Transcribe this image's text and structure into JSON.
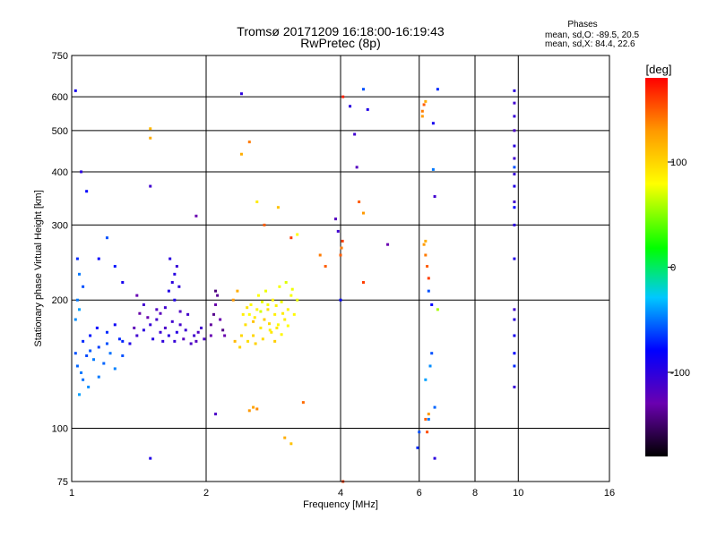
{
  "header": {
    "title": "Tromsø 20171209 16:18:00-16:19:43",
    "subtitle": "RwPretec (8p)"
  },
  "phase_box": {
    "title": "Phases",
    "line1": "mean, sd,O: -89.5, 20.5",
    "line2": "mean, sd,X:  84.4, 22.6"
  },
  "colorbar": {
    "label": "[deg]",
    "ticks": [
      "100",
      "0",
      "-100"
    ],
    "tick_values": [
      100,
      0,
      -100
    ],
    "range": [
      -180,
      180
    ]
  },
  "chart_data": {
    "type": "scatter",
    "title": "Tromsø 20171209 16:18:00-16:19:43",
    "subtitle": "RwPretec (8p)",
    "xlabel": "Frequency [MHz]",
    "ylabel": "Stationary phase Virtual Height [km]",
    "x_scale": "log",
    "y_scale": "log",
    "xlim": [
      1,
      16
    ],
    "ylim": [
      75,
      750
    ],
    "x_ticks": [
      1,
      2,
      4,
      6,
      8,
      10,
      16
    ],
    "x_tick_labels": [
      "1",
      "2",
      "4",
      "6",
      "8",
      "10",
      "16"
    ],
    "y_ticks": [
      75,
      100,
      200,
      300,
      400,
      500,
      600,
      750
    ],
    "y_tick_labels": [
      "75",
      "100",
      "200",
      "300",
      "400",
      "500",
      "600",
      "750"
    ],
    "grid": true,
    "color_by": "phase",
    "series": [
      {
        "values": [
          [
            1.02,
            150,
            -60
          ],
          [
            1.03,
            140,
            -55
          ],
          [
            1.05,
            135,
            -50
          ],
          [
            1.06,
            160,
            -70
          ],
          [
            1.04,
            190,
            -40
          ],
          [
            1.08,
            148,
            -62
          ],
          [
            1.1,
            152,
            -58
          ],
          [
            1.12,
            145,
            -50
          ],
          [
            1.15,
            155,
            -65
          ],
          [
            1.18,
            142,
            -55
          ],
          [
            1.2,
            158,
            -60
          ],
          [
            1.22,
            150,
            -52
          ],
          [
            1.25,
            138,
            -48
          ],
          [
            1.28,
            162,
            -70
          ],
          [
            1.3,
            148,
            -60
          ],
          [
            1.02,
            180,
            -45
          ],
          [
            1.03,
            200,
            -50
          ],
          [
            1.1,
            165,
            -75
          ],
          [
            1.14,
            172,
            -80
          ],
          [
            1.2,
            168,
            -70
          ],
          [
            1.25,
            175,
            -85
          ],
          [
            1.3,
            160,
            -72
          ],
          [
            1.04,
            230,
            -50
          ],
          [
            1.06,
            215,
            -60
          ],
          [
            1.09,
            125,
            -45
          ],
          [
            1.04,
            120,
            -40
          ],
          [
            1.06,
            130,
            -52
          ],
          [
            1.15,
            132,
            -50
          ],
          [
            1.35,
            158,
            -95
          ],
          [
            1.4,
            165,
            -110
          ],
          [
            1.45,
            170,
            -100
          ],
          [
            1.5,
            175,
            -105
          ],
          [
            1.52,
            162,
            -98
          ],
          [
            1.55,
            180,
            -112
          ],
          [
            1.58,
            168,
            -108
          ],
          [
            1.6,
            160,
            -102
          ],
          [
            1.62,
            172,
            -115
          ],
          [
            1.65,
            165,
            -100
          ],
          [
            1.68,
            178,
            -110
          ],
          [
            1.7,
            160,
            -105
          ],
          [
            1.72,
            168,
            -98
          ],
          [
            1.75,
            175,
            -112
          ],
          [
            1.78,
            162,
            -120
          ],
          [
            1.8,
            170,
            -108
          ],
          [
            1.85,
            158,
            -115
          ],
          [
            1.88,
            165,
            -110
          ],
          [
            1.9,
            160,
            -120
          ],
          [
            1.92,
            168,
            -118
          ],
          [
            1.95,
            172,
            -110
          ],
          [
            1.98,
            162,
            -115
          ],
          [
            1.65,
            210,
            -95
          ],
          [
            1.68,
            220,
            -100
          ],
          [
            1.7,
            230,
            -98
          ],
          [
            1.72,
            240,
            -105
          ],
          [
            1.66,
            250,
            -100
          ],
          [
            1.7,
            200,
            -95
          ],
          [
            1.74,
            215,
            -102
          ],
          [
            1.45,
            195,
            -110
          ],
          [
            1.55,
            190,
            -118
          ],
          [
            1.48,
            182,
            -130
          ],
          [
            1.82,
            185,
            -112
          ],
          [
            1.4,
            205,
            -128
          ],
          [
            1.38,
            172,
            -124
          ],
          [
            1.42,
            186,
            -132
          ],
          [
            1.58,
            186,
            -122
          ],
          [
            1.62,
            192,
            -110
          ],
          [
            1.75,
            188,
            -118
          ],
          [
            2.05,
            175,
            -135
          ],
          [
            2.08,
            185,
            -140
          ],
          [
            2.1,
            195,
            -132
          ],
          [
            2.12,
            205,
            -138
          ],
          [
            2.15,
            180,
            -130
          ],
          [
            2.18,
            170,
            -142
          ],
          [
            2.05,
            165,
            -128
          ],
          [
            2.1,
            210,
            -145
          ],
          [
            1.08,
            360,
            -80
          ],
          [
            1.02,
            620,
            -90
          ],
          [
            1.05,
            400,
            -100
          ],
          [
            1.5,
            370,
            -110
          ],
          [
            1.9,
            315,
            -130
          ],
          [
            2.4,
            610,
            -100
          ],
          [
            1.25,
            240,
            -75
          ],
          [
            1.15,
            250,
            -80
          ],
          [
            1.3,
            220,
            -90
          ],
          [
            1.2,
            280,
            -60
          ],
          [
            1.03,
            250,
            -70
          ],
          [
            1.5,
            85,
            -95
          ],
          [
            2.1,
            108,
            -115
          ],
          [
            2.2,
            165,
            -130
          ],
          [
            3.9,
            310,
            -120
          ],
          [
            3.95,
            290,
            -110
          ],
          [
            4.0,
            200,
            -80
          ],
          [
            4.35,
            410,
            -120
          ],
          [
            4.3,
            490,
            -110
          ],
          [
            4.2,
            570,
            -100
          ],
          [
            4.6,
            560,
            -95
          ],
          [
            4.5,
            625,
            -60
          ],
          [
            5.1,
            270,
            -130
          ],
          [
            6.2,
            130,
            -40
          ],
          [
            6.3,
            105,
            -50
          ],
          [
            6.4,
            150,
            -60
          ],
          [
            6.45,
            520,
            -90
          ],
          [
            6.5,
            350,
            -110
          ],
          [
            6.45,
            405,
            -50
          ],
          [
            6.6,
            625,
            -70
          ],
          [
            6.5,
            85,
            -100
          ],
          [
            6.3,
            210,
            -60
          ],
          [
            6.4,
            195,
            -80
          ],
          [
            6.5,
            112,
            -55
          ],
          [
            6.35,
            140,
            -45
          ],
          [
            9.8,
            620,
            -100
          ],
          [
            9.8,
            580,
            -110
          ],
          [
            9.8,
            540,
            -105
          ],
          [
            9.8,
            500,
            -115
          ],
          [
            9.8,
            460,
            -100
          ],
          [
            9.8,
            430,
            -110
          ],
          [
            9.8,
            395,
            -105
          ],
          [
            9.8,
            370,
            -95
          ],
          [
            9.8,
            340,
            -110
          ],
          [
            9.8,
            300,
            -100
          ],
          [
            9.8,
            250,
            -95
          ],
          [
            9.8,
            190,
            -110
          ],
          [
            9.8,
            180,
            -100
          ],
          [
            9.8,
            165,
            -90
          ],
          [
            9.8,
            150,
            -80
          ],
          [
            9.8,
            140,
            -70
          ],
          [
            9.8,
            125,
            -105
          ],
          [
            9.8,
            410,
            -60
          ],
          [
            9.8,
            330,
            -80
          ],
          [
            6.0,
            98,
            -60
          ],
          [
            5.95,
            90,
            -70
          ]
        ]
      },
      {
        "values": [
          [
            2.45,
            175,
            95
          ],
          [
            2.5,
            185,
            80
          ],
          [
            2.55,
            165,
            100
          ],
          [
            2.6,
            190,
            85
          ],
          [
            2.65,
            172,
            90
          ],
          [
            2.7,
            180,
            105
          ],
          [
            2.75,
            195,
            78
          ],
          [
            2.8,
            168,
            92
          ],
          [
            2.85,
            185,
            88
          ],
          [
            2.9,
            175,
            82
          ],
          [
            2.95,
            198,
            76
          ],
          [
            3.0,
            180,
            90
          ],
          [
            3.05,
            190,
            85
          ],
          [
            3.1,
            205,
            78
          ],
          [
            3.15,
            185,
            82
          ],
          [
            3.2,
            200,
            75
          ],
          [
            2.4,
            165,
            100
          ],
          [
            2.48,
            160,
            95
          ],
          [
            2.58,
            158,
            102
          ],
          [
            2.68,
            162,
            98
          ],
          [
            2.78,
            170,
            86
          ],
          [
            2.88,
            172,
            92
          ],
          [
            2.52,
            195,
            82
          ],
          [
            2.62,
            205,
            80
          ],
          [
            2.72,
            210,
            76
          ],
          [
            2.82,
            200,
            88
          ],
          [
            2.92,
            215,
            78
          ],
          [
            3.02,
            220,
            72
          ],
          [
            3.12,
            212,
            76
          ],
          [
            2.55,
            178,
            110
          ],
          [
            2.65,
            188,
            70
          ],
          [
            2.75,
            190,
            96
          ],
          [
            2.85,
            160,
            104
          ],
          [
            2.95,
            166,
            84
          ],
          [
            3.05,
            174,
            80
          ],
          [
            2.42,
            185,
            88
          ],
          [
            2.47,
            192,
            94
          ],
          [
            2.57,
            182,
            90
          ],
          [
            2.67,
            198,
            74
          ],
          [
            2.77,
            176,
            98
          ],
          [
            2.87,
            194,
            86
          ],
          [
            2.97,
            186,
            90
          ],
          [
            1.5,
            480,
            120
          ],
          [
            1.5,
            505,
            115
          ],
          [
            2.5,
            470,
            140
          ],
          [
            2.4,
            440,
            120
          ],
          [
            2.6,
            340,
            90
          ],
          [
            2.7,
            300,
            150
          ],
          [
            2.9,
            330,
            110
          ],
          [
            3.1,
            280,
            160
          ],
          [
            2.5,
            110,
            130
          ],
          [
            2.55,
            112,
            125
          ],
          [
            2.6,
            111,
            135
          ],
          [
            3.0,
            95,
            120
          ],
          [
            3.1,
            92,
            110
          ],
          [
            3.2,
            285,
            80
          ],
          [
            3.3,
            115,
            145
          ],
          [
            3.6,
            255,
            140
          ],
          [
            3.7,
            240,
            150
          ],
          [
            4.0,
            255,
            150
          ],
          [
            4.02,
            265,
            140
          ],
          [
            4.04,
            275,
            160
          ],
          [
            4.05,
            600,
            170
          ],
          [
            4.4,
            340,
            150
          ],
          [
            4.5,
            320,
            130
          ],
          [
            4.5,
            220,
            160
          ],
          [
            6.1,
            555,
            140
          ],
          [
            6.15,
            575,
            150
          ],
          [
            6.2,
            585,
            120
          ],
          [
            6.1,
            540,
            130
          ],
          [
            6.15,
            270,
            130
          ],
          [
            6.2,
            275,
            120
          ],
          [
            6.2,
            255,
            140
          ],
          [
            6.25,
            240,
            150
          ],
          [
            6.3,
            225,
            160
          ],
          [
            6.2,
            105,
            150
          ],
          [
            6.25,
            98,
            155
          ],
          [
            6.3,
            108,
            130
          ],
          [
            6.6,
            190,
            60
          ],
          [
            4.05,
            75,
            160
          ],
          [
            2.3,
            200,
            130
          ],
          [
            2.35,
            210,
            120
          ],
          [
            2.38,
            155,
            100
          ],
          [
            2.32,
            160,
            115
          ]
        ]
      }
    ]
  }
}
